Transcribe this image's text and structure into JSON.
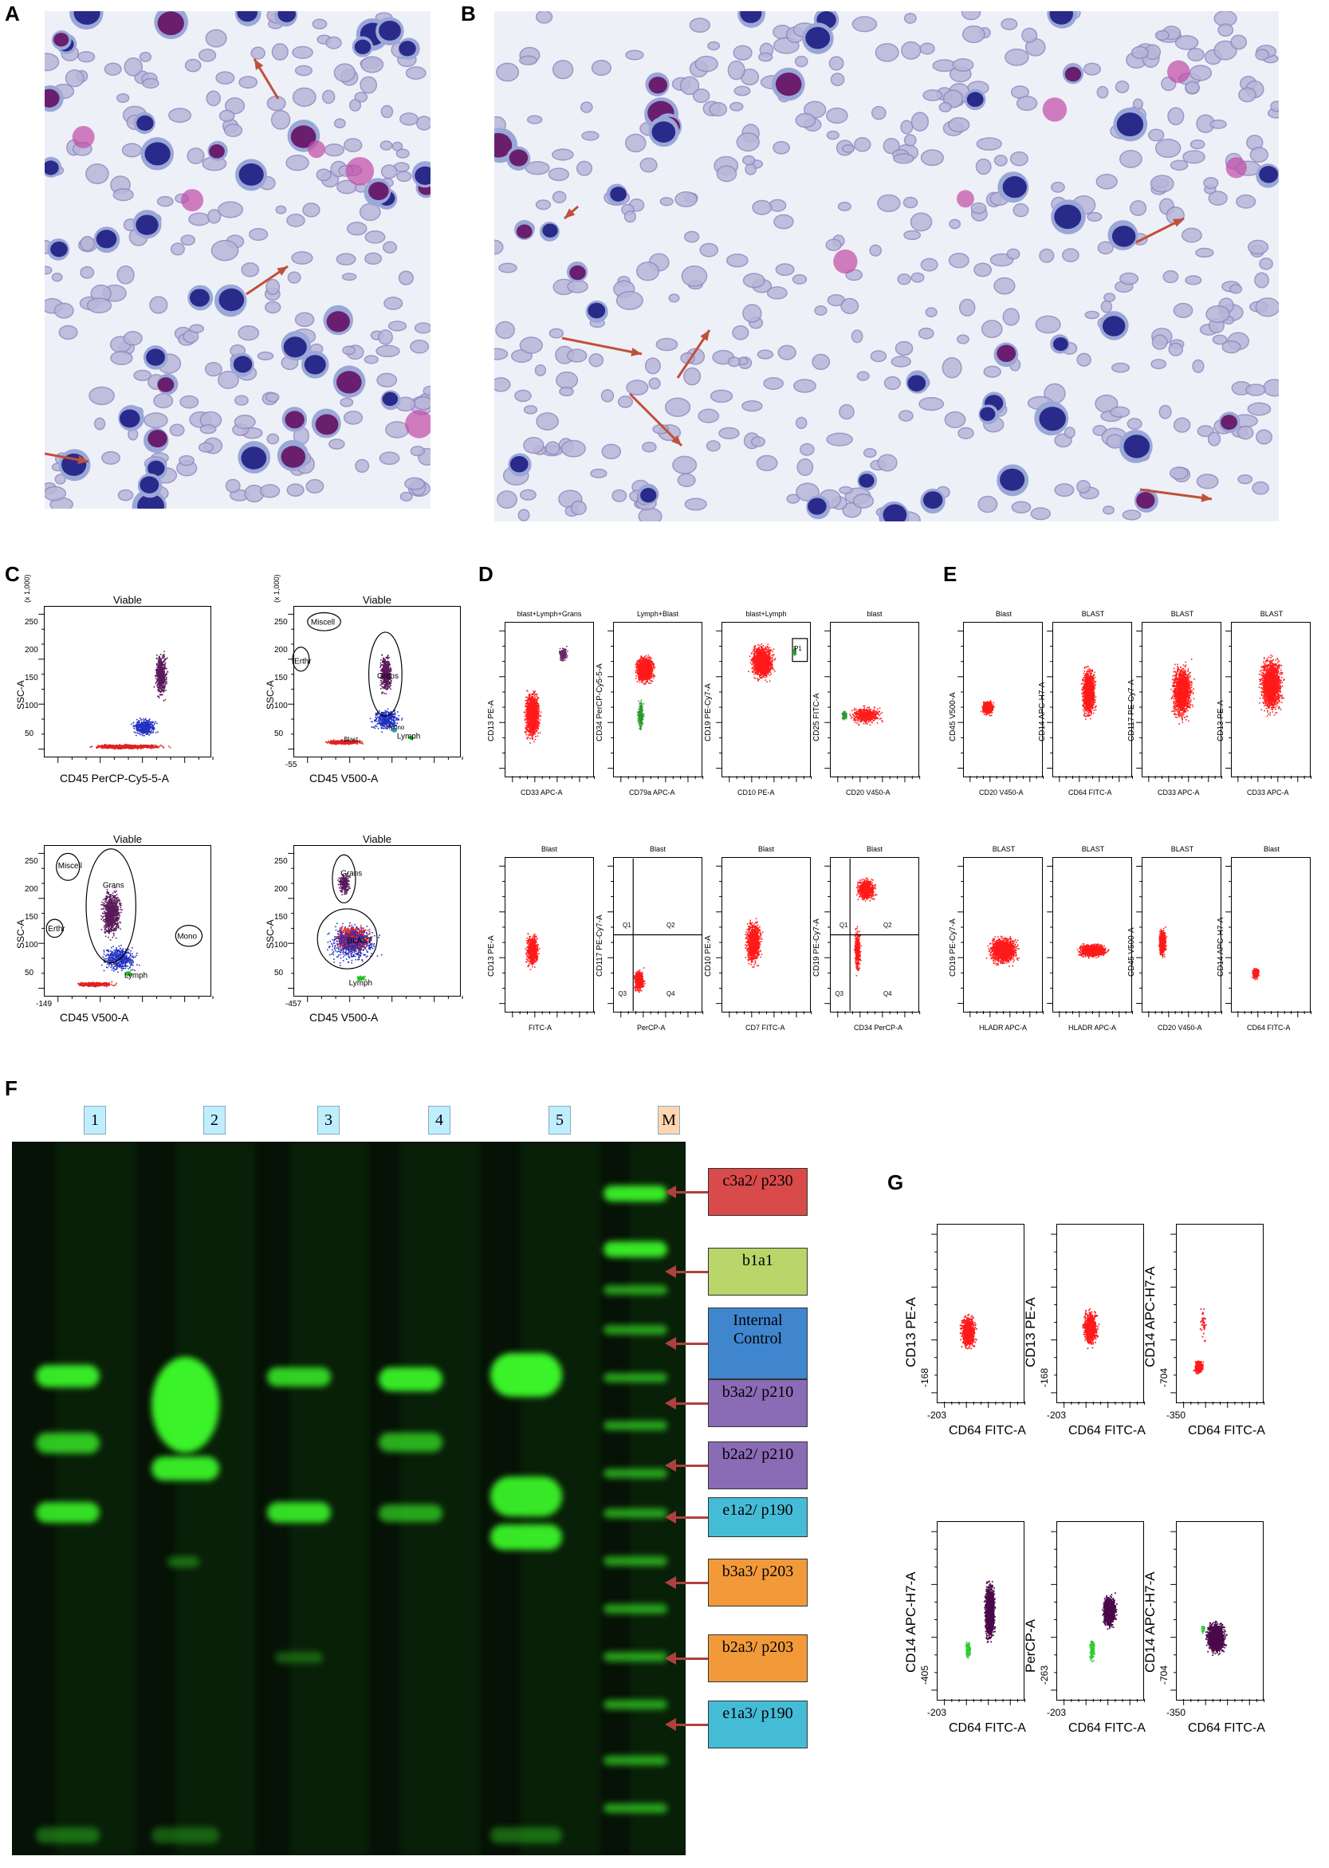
{
  "panels": {
    "A": "A",
    "B": "B",
    "C": "C",
    "D": "D",
    "E": "E",
    "F": "F",
    "G": "G"
  },
  "panel_c": {
    "plots": [
      {
        "title": "Viable",
        "ylabel": "SSC-A",
        "xlabel": "CD45 PerCP-Cy5-5-A",
        "scale": "(x 1,000)",
        "gates": []
      },
      {
        "title": "Viable",
        "ylabel": "SSC-A",
        "xlabel": "CD45 V500-A",
        "scale": "(x 1,000)",
        "gates": [
          "Miscell",
          "Erthr",
          "Grans",
          "Blast",
          "Mono",
          "Lymph"
        ]
      },
      {
        "title": "Viable",
        "ylabel": "SSC-A",
        "xlabel": "CD45 V500-A",
        "scale": "",
        "gates": [
          "Miscell",
          "Grans",
          "Erthr",
          "Mono",
          "Lymph"
        ]
      },
      {
        "title": "Viable",
        "ylabel": "SSC-A",
        "xlabel": "CD45 V500-A",
        "scale": "",
        "gates": [
          "Grans",
          "BLAST",
          "Lymph"
        ]
      }
    ],
    "yticks": [
      "250",
      "200",
      "150",
      "100",
      "50"
    ],
    "xmin": [
      "",
      "-55",
      "-149",
      "-457"
    ]
  },
  "panel_d": {
    "top": [
      {
        "title": "blast+Lymph+Grans",
        "ylabel": "CD13 PE-A",
        "xlabel": "CD33 APC-A"
      },
      {
        "title": "Lymph+Blast",
        "ylabel": "CD34 PerCP-Cy5-5-A",
        "xlabel": "CD79a APC-A"
      },
      {
        "title": "blast+Lymph",
        "ylabel": "CD19 PE-Cy7-A",
        "xlabel": "CD10 PE-A",
        "gate": "P1"
      },
      {
        "title": "blast",
        "ylabel": "CD25 FITC-A",
        "xlabel": "CD20 V450-A"
      }
    ],
    "bottom": [
      {
        "title": "Blast",
        "ylabel": "CD13 PE-A",
        "xlabel": "FITC-A"
      },
      {
        "title": "Blast",
        "ylabel": "CD117 PE-Cy7-A",
        "xlabel": "PerCP-A",
        "quads": [
          "Q1",
          "Q2",
          "Q3",
          "Q4"
        ]
      },
      {
        "title": "Blast",
        "ylabel": "CD10 PE-A",
        "xlabel": "CD7 FITC-A"
      },
      {
        "title": "Blast",
        "ylabel": "CD19 PE-Cy7-A",
        "xlabel": "CD34 PerCP-A",
        "quads": [
          "Q1",
          "Q2",
          "Q3",
          "Q4"
        ]
      }
    ]
  },
  "panel_e": {
    "top": [
      {
        "title": "Blast",
        "ylabel": "CD45 V500-A",
        "xlabel": "CD20 V450-A"
      },
      {
        "title": "BLAST",
        "ylabel": "CD14 APC-H7-A",
        "xlabel": "CD64 FITC-A"
      },
      {
        "title": "BLAST",
        "ylabel": "CD117 PE-Cy7-A",
        "xlabel": "CD33 APC-A"
      },
      {
        "title": "BLAST",
        "ylabel": "CD13 PE-A",
        "xlabel": "CD33 APC-A"
      }
    ],
    "bottom": [
      {
        "title": "BLAST",
        "ylabel": "CD19 PE-Cy7-A",
        "xlabel": "HLADR APC-A"
      },
      {
        "title": "BLAST",
        "ylabel": "",
        "xlabel": "HLADR APC-A"
      },
      {
        "title": "BLAST",
        "ylabel": "CD45 V500-A",
        "xlabel": "CD20 V450-A"
      },
      {
        "title": "Blast",
        "ylabel": "CD14 APC-H7-A",
        "xlabel": "CD64 FITC-A"
      }
    ]
  },
  "panel_f": {
    "lanes": [
      "1",
      "2",
      "3",
      "4",
      "5",
      "M"
    ],
    "bands": [
      {
        "label_1": "c3a2/ p230",
        "label_2": "",
        "color": "#d94a4a"
      },
      {
        "label_1": "b1a1",
        "label_2": "",
        "color": "#b8d66a"
      },
      {
        "label_1": "Internal",
        "label_2": "Control",
        "color": "#3f86cf"
      },
      {
        "label_1": "b3a2/ p210",
        "label_2": "",
        "color": "#8a6bb5"
      },
      {
        "label_1": "b2a2/ p210",
        "label_2": "",
        "color": "#8a6bb5"
      },
      {
        "label_1": "e1a2/ p190",
        "label_2": "",
        "color": "#45bcd6"
      },
      {
        "label_1": "b3a3/ p203",
        "label_2": "",
        "color": "#f29a3a"
      },
      {
        "label_1": "b2a3/ p203",
        "label_2": "",
        "color": "#f29a3a"
      },
      {
        "label_1": "e1a3/ p190",
        "label_2": "",
        "color": "#45bcd6"
      }
    ]
  },
  "panel_g": {
    "top": [
      {
        "ylabel": "CD13 PE-A",
        "xlabel": "CD64 FITC-A",
        "ymin": "-168",
        "xmin": "-203"
      },
      {
        "ylabel": "CD13 PE-A",
        "xlabel": "CD64 FITC-A",
        "ymin": "-168",
        "xmin": "-203"
      },
      {
        "ylabel": "CD14 APC-H7-A",
        "xlabel": "CD64 FITC-A",
        "ymin": "-704",
        "xmin": "-350"
      }
    ],
    "bottom": [
      {
        "ylabel": "CD14 APC-H7-A",
        "xlabel": "CD64 FITC-A",
        "ymin": "-405",
        "xmin": "-203"
      },
      {
        "ylabel": "PerCP-A",
        "xlabel": "CD64 FITC-A",
        "ymin": "-263",
        "xmin": "-203"
      },
      {
        "ylabel": "CD14 APC-H7-A",
        "xlabel": "CD64 FITC-A",
        "ymin": "-704",
        "xmin": "-350"
      }
    ]
  }
}
